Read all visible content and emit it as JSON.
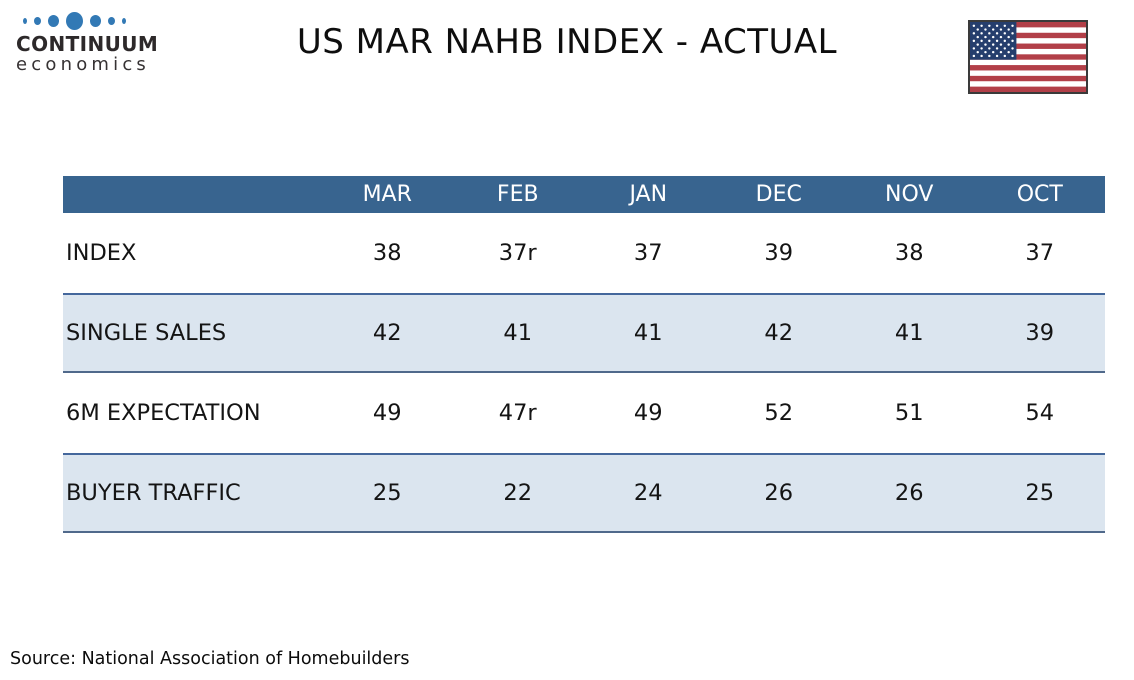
{
  "header": {
    "title": "US MAR NAHB INDEX - ACTUAL",
    "logo": {
      "line1": "CONTINUUM",
      "line2": "economics"
    },
    "flag_icon": "us-flag"
  },
  "chart_data": {
    "type": "table",
    "title": "US MAR NAHB INDEX - ACTUAL",
    "columns": [
      "MAR",
      "FEB",
      "JAN",
      "DEC",
      "NOV",
      "OCT"
    ],
    "rows": [
      {
        "label": "INDEX",
        "values": [
          "38",
          "37r",
          "37",
          "39",
          "38",
          "37"
        ]
      },
      {
        "label": "SINGLE SALES",
        "values": [
          "42",
          "41",
          "41",
          "42",
          "41",
          "39"
        ]
      },
      {
        "label": "6M EXPECTATION",
        "values": [
          "49",
          "47r",
          "49",
          "52",
          "51",
          "54"
        ]
      },
      {
        "label": "BUYER TRAFFIC",
        "values": [
          "25",
          "22",
          "24",
          "26",
          "26",
          "25"
        ]
      }
    ],
    "source": "Source: National Association of Homebuilders"
  },
  "colors": {
    "table_header_bg": "#38648f",
    "table_header_text": "#ffffff",
    "row_alt_bg": "#dbe5ef",
    "row_separator": "#44679c",
    "logo_dot_blue": "#3279b5",
    "flag_red": "#b23f48",
    "flag_navy": "#253e6d",
    "flag_border": "#3a3a3a"
  }
}
